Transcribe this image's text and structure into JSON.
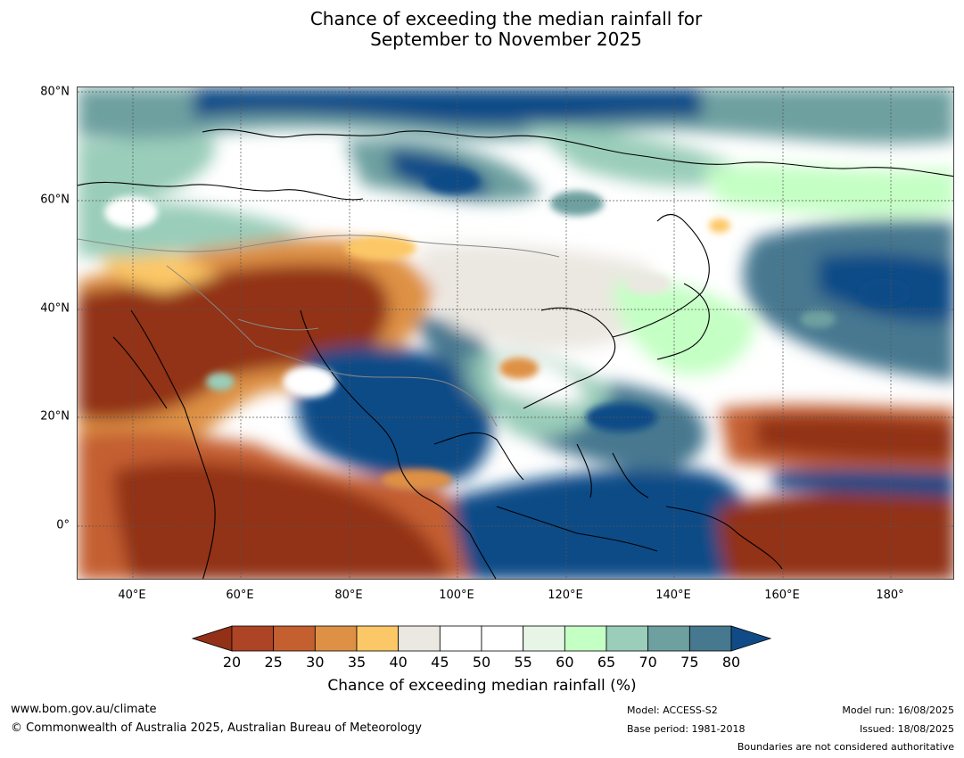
{
  "title_line1": "Chance of exceeding the median rainfall for",
  "title_line2": "September to November 2025",
  "map": {
    "lat_labels": [
      "80°N",
      "60°N",
      "40°N",
      "20°N",
      "0°"
    ],
    "lon_labels": [
      "40°E",
      "60°E",
      "80°E",
      "100°E",
      "120°E",
      "140°E",
      "160°E",
      "180°"
    ],
    "colors": {
      "c20": "#923117",
      "c25": "#ad4426",
      "c30": "#c45f30",
      "c35": "#de9145",
      "c40": "#fcc766",
      "c45": "#ebe7e1",
      "c50": "#ffffff",
      "c55": "#ffffff",
      "c60": "#e6f5e6",
      "c65": "#c4ffc4",
      "c70": "#9acdba",
      "c75": "#6ea0a0",
      "c80": "#467890",
      "c85": "#114b87"
    }
  },
  "colorbar": {
    "ticks": [
      "20",
      "25",
      "30",
      "35",
      "40",
      "45",
      "50",
      "55",
      "60",
      "65",
      "70",
      "75",
      "80"
    ],
    "colors": [
      "#ad4426",
      "#c45f30",
      "#de9145",
      "#fcc766",
      "#ebe7e1",
      "#ffffff",
      "#ffffff",
      "#e6f5e6",
      "#c4ffc4",
      "#9acdba",
      "#6ea0a0",
      "#467890"
    ],
    "low_color": "#923117",
    "high_color": "#114b87",
    "label": "Chance of exceeding median rainfall (%)"
  },
  "footer": {
    "website": "www.bom.gov.au/climate",
    "copyright": "© Commonwealth of Australia 2025, Australian Bureau of Meteorology",
    "model": "Model: ACCESS-S2",
    "base_period": "Base period: 1981-2018",
    "model_run": "Model run: 16/08/2025",
    "issued": "Issued: 18/08/2025",
    "disclaimer": "Boundaries are not considered authoritative"
  }
}
